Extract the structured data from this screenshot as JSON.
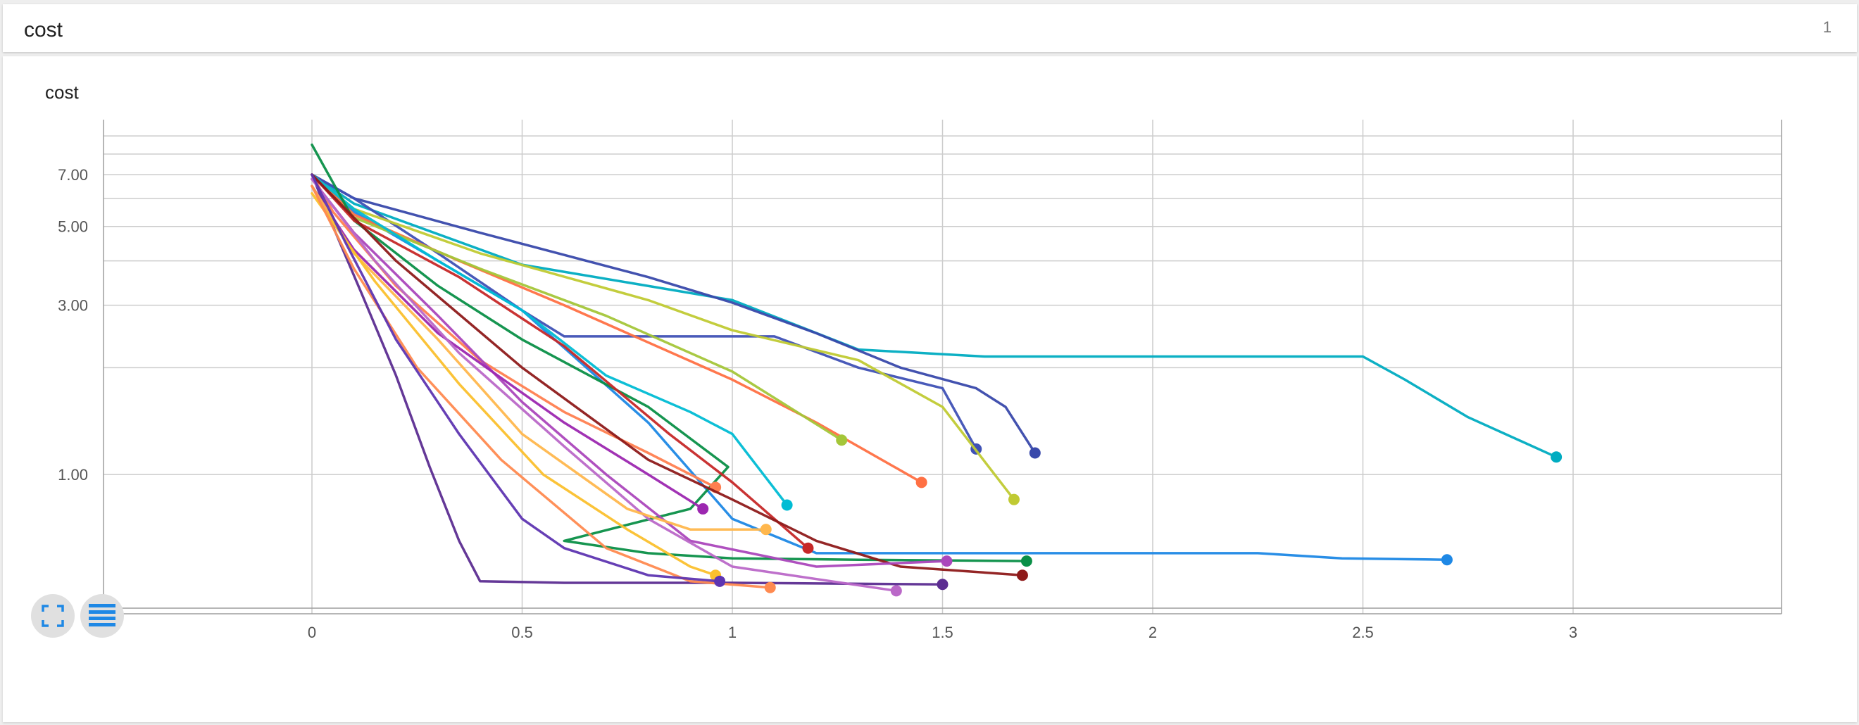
{
  "card": {
    "title": "cost",
    "count": "1"
  },
  "chart_title": "cost",
  "icons": {
    "expand": "fullscreen-icon",
    "toggle": "data-table-icon"
  },
  "colors": {
    "grid": "#cccccc",
    "axis": "#9e9e9e"
  },
  "chart_data": {
    "type": "line",
    "title": "cost",
    "xlabel": "",
    "ylabel": "",
    "y_scale": "log",
    "xlim": [
      -0.5,
      3.5
    ],
    "ylim": [
      0.42,
      10
    ],
    "x_ticks": [
      {
        "value": 0,
        "label": "0"
      },
      {
        "value": 0.5,
        "label": "0.5"
      },
      {
        "value": 1,
        "label": "1"
      },
      {
        "value": 1.5,
        "label": "1.5"
      },
      {
        "value": 2,
        "label": "2"
      },
      {
        "value": 2.5,
        "label": "2.5"
      },
      {
        "value": 3,
        "label": "3"
      }
    ],
    "y_ticks": [
      {
        "value": 7,
        "label": "7.00"
      },
      {
        "value": 5,
        "label": "5.00"
      },
      {
        "value": 3,
        "label": "3.00"
      },
      {
        "value": 1,
        "label": "1.00"
      }
    ],
    "y_minor_grid": [
      9,
      8,
      6,
      4,
      2
    ],
    "grid": true,
    "series": [
      {
        "color": "#00acc1",
        "points": [
          [
            0,
            7
          ],
          [
            0.1,
            5.8
          ],
          [
            0.5,
            3.9
          ],
          [
            1,
            3.1
          ],
          [
            1.3,
            2.25
          ],
          [
            1.6,
            2.15
          ],
          [
            2.0,
            2.15
          ],
          [
            2.5,
            2.15
          ],
          [
            2.6,
            1.85
          ],
          [
            2.75,
            1.45
          ],
          [
            2.96,
            1.12
          ]
        ]
      },
      {
        "color": "#5c2d91",
        "points": [
          [
            0,
            7
          ],
          [
            0.05,
            5
          ],
          [
            0.12,
            3.2
          ],
          [
            0.2,
            1.9
          ],
          [
            0.28,
            1.05
          ],
          [
            0.35,
            0.65
          ],
          [
            0.4,
            0.5
          ],
          [
            0.6,
            0.495
          ],
          [
            1.0,
            0.495
          ],
          [
            1.5,
            0.49
          ]
        ]
      },
      {
        "color": "#3949ab",
        "points": [
          [
            0,
            7
          ],
          [
            0.1,
            6
          ],
          [
            0.4,
            4.8
          ],
          [
            0.8,
            3.6
          ],
          [
            1.0,
            3.05
          ],
          [
            1.2,
            2.5
          ],
          [
            1.4,
            2.0
          ],
          [
            1.58,
            1.75
          ],
          [
            1.65,
            1.55
          ],
          [
            1.72,
            1.15
          ]
        ]
      },
      {
        "color": "#3f51b5",
        "points": [
          [
            0,
            7
          ],
          [
            0.1,
            6
          ],
          [
            0.3,
            4.2
          ],
          [
            0.5,
            2.9
          ],
          [
            0.6,
            2.45
          ],
          [
            1.0,
            2.45
          ],
          [
            1.1,
            2.45
          ],
          [
            1.3,
            2.0
          ],
          [
            1.5,
            1.75
          ],
          [
            1.58,
            1.18
          ]
        ]
      },
      {
        "color": "#1e88e5",
        "points": [
          [
            0,
            7
          ],
          [
            0.1,
            5.5
          ],
          [
            0.3,
            4.0
          ],
          [
            0.5,
            2.9
          ],
          [
            0.8,
            1.4
          ],
          [
            1.0,
            0.75
          ],
          [
            1.2,
            0.6
          ],
          [
            1.5,
            0.6
          ],
          [
            2.25,
            0.6
          ],
          [
            2.45,
            0.58
          ],
          [
            2.7,
            0.575
          ]
        ]
      },
      {
        "color": "#c0ca33",
        "points": [
          [
            0,
            7
          ],
          [
            0.1,
            5.6
          ],
          [
            0.4,
            4.2
          ],
          [
            0.8,
            3.1
          ],
          [
            1.0,
            2.55
          ],
          [
            1.3,
            2.1
          ],
          [
            1.5,
            1.55
          ],
          [
            1.67,
            0.85
          ]
        ]
      },
      {
        "color": "#ff7043",
        "points": [
          [
            0,
            7
          ],
          [
            0.1,
            5.4
          ],
          [
            0.35,
            4.0
          ],
          [
            0.6,
            3.0
          ],
          [
            1.0,
            1.85
          ],
          [
            1.2,
            1.4
          ],
          [
            1.45,
            0.95
          ]
        ]
      },
      {
        "color": "#a4c639",
        "points": [
          [
            0,
            7
          ],
          [
            0.1,
            5.3
          ],
          [
            0.4,
            3.8
          ],
          [
            0.7,
            2.8
          ],
          [
            1.0,
            1.95
          ],
          [
            1.26,
            1.25
          ]
        ]
      },
      {
        "color": "#00bcd4",
        "points": [
          [
            0,
            7
          ],
          [
            0.1,
            5.6
          ],
          [
            0.3,
            4.0
          ],
          [
            0.5,
            2.9
          ],
          [
            0.7,
            1.9
          ],
          [
            0.9,
            1.5
          ],
          [
            1.0,
            1.3
          ],
          [
            1.13,
            0.82
          ]
        ]
      },
      {
        "color": "#0a8f47",
        "points": [
          [
            0,
            8.5
          ],
          [
            0.1,
            5.2
          ],
          [
            0.3,
            3.4
          ],
          [
            0.5,
            2.4
          ],
          [
            0.8,
            1.55
          ],
          [
            0.99,
            1.05
          ],
          [
            0.9,
            0.8
          ],
          [
            0.6,
            0.65
          ],
          [
            0.8,
            0.6
          ],
          [
            1.0,
            0.58
          ],
          [
            1.3,
            0.575
          ],
          [
            1.7,
            0.57
          ]
        ]
      },
      {
        "color": "#ff7f50",
        "points": [
          [
            0,
            7
          ],
          [
            0.05,
            5.5
          ],
          [
            0.2,
            3.4
          ],
          [
            0.4,
            2.1
          ],
          [
            0.6,
            1.5
          ],
          [
            0.8,
            1.15
          ],
          [
            0.96,
            0.92
          ]
        ]
      },
      {
        "color": "#c62828",
        "points": [
          [
            0,
            7
          ],
          [
            0.1,
            5.2
          ],
          [
            0.35,
            3.6
          ],
          [
            0.6,
            2.3
          ],
          [
            0.85,
            1.3
          ],
          [
            1.0,
            0.95
          ],
          [
            1.18,
            0.62
          ]
        ]
      },
      {
        "color": "#8e1a1a",
        "points": [
          [
            0,
            7
          ],
          [
            0.2,
            4.0
          ],
          [
            0.5,
            2.0
          ],
          [
            0.8,
            1.1
          ],
          [
            1.0,
            0.85
          ],
          [
            1.2,
            0.65
          ],
          [
            1.4,
            0.55
          ],
          [
            1.69,
            0.52
          ]
        ]
      },
      {
        "color": "#ab47bc",
        "points": [
          [
            0,
            6.8
          ],
          [
            0.1,
            4.8
          ],
          [
            0.3,
            2.8
          ],
          [
            0.5,
            1.6
          ],
          [
            0.7,
            1.0
          ],
          [
            0.9,
            0.65
          ],
          [
            1.2,
            0.55
          ],
          [
            1.51,
            0.57
          ]
        ]
      },
      {
        "color": "#9c27b0",
        "points": [
          [
            0,
            6.5
          ],
          [
            0.1,
            4.3
          ],
          [
            0.3,
            2.5
          ],
          [
            0.6,
            1.4
          ],
          [
            0.8,
            1.0
          ],
          [
            0.93,
            0.8
          ]
        ]
      },
      {
        "color": "#ba68c8",
        "points": [
          [
            0,
            6.8
          ],
          [
            0.15,
            4.0
          ],
          [
            0.35,
            2.2
          ],
          [
            0.6,
            1.2
          ],
          [
            0.8,
            0.75
          ],
          [
            1.0,
            0.55
          ],
          [
            1.39,
            0.47
          ]
        ]
      },
      {
        "color": "#ffb74d",
        "points": [
          [
            0,
            6.5
          ],
          [
            0.1,
            4.2
          ],
          [
            0.3,
            2.4
          ],
          [
            0.5,
            1.3
          ],
          [
            0.75,
            0.8
          ],
          [
            0.9,
            0.7
          ],
          [
            1.08,
            0.7
          ]
        ]
      },
      {
        "color": "#fbc02d",
        "points": [
          [
            0,
            6.2
          ],
          [
            0.15,
            3.5
          ],
          [
            0.35,
            1.8
          ],
          [
            0.55,
            1.0
          ],
          [
            0.75,
            0.7
          ],
          [
            0.9,
            0.55
          ],
          [
            0.96,
            0.52
          ]
        ]
      },
      {
        "color": "#ff8a50",
        "points": [
          [
            0,
            6.5
          ],
          [
            0.1,
            3.8
          ],
          [
            0.25,
            2.0
          ],
          [
            0.45,
            1.1
          ],
          [
            0.7,
            0.62
          ],
          [
            0.9,
            0.5
          ],
          [
            1.09,
            0.48
          ]
        ]
      },
      {
        "color": "#5e35b1",
        "points": [
          [
            0,
            7
          ],
          [
            0.08,
            4.5
          ],
          [
            0.2,
            2.4
          ],
          [
            0.35,
            1.3
          ],
          [
            0.5,
            0.75
          ],
          [
            0.6,
            0.62
          ],
          [
            0.8,
            0.52
          ],
          [
            0.97,
            0.5
          ]
        ]
      }
    ]
  }
}
